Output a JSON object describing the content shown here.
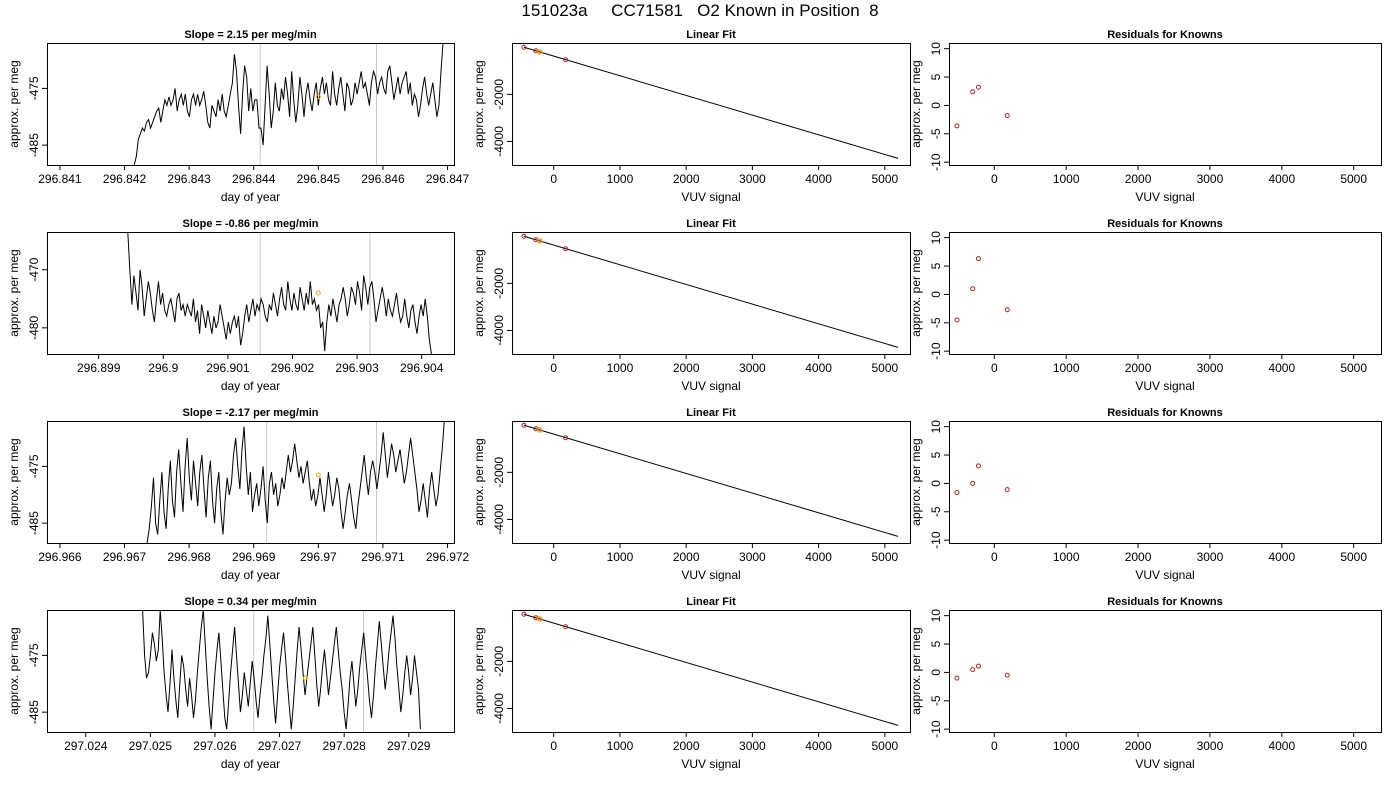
{
  "figure": {
    "title": "151023a     CC71581   O2 Known in Position  8"
  },
  "chart_data": [
    {
      "type": "line",
      "panel": "timeseries",
      "row": 1,
      "title": "Slope =  2.15  per meg/min",
      "xlabel": "day of year",
      "ylabel": "approx. per meg",
      "xlim": [
        296.8408,
        296.8471
      ],
      "ylim": [
        -488.5,
        -467
      ],
      "xticks": [
        296.841,
        296.842,
        296.843,
        296.844,
        296.845,
        296.846,
        296.847
      ],
      "yticks": [
        -475,
        -485
      ],
      "vlines": [
        296.8441,
        296.8459
      ],
      "highlight_point": {
        "x": 296.845,
        "y": -476.5
      },
      "series": [
        {
          "x_start": 296.84215,
          "x_end": 296.84693,
          "values": [
            -488.5,
            -487,
            -484,
            -483,
            -482,
            -482.5,
            -481,
            -480.5,
            -482,
            -481,
            -480,
            -479,
            -478.5,
            -481,
            -479,
            -477,
            -478,
            -476.5,
            -478,
            -477,
            -475,
            -479,
            -477,
            -476,
            -478,
            -476,
            -479,
            -480,
            -477,
            -476,
            -478,
            -476,
            -478,
            -477,
            -475.5,
            -478,
            -481,
            -482,
            -478,
            -479,
            -480,
            -477,
            -479,
            -476,
            -479,
            -480,
            -478,
            -476,
            -474,
            -469,
            -472,
            -478,
            -483,
            -476,
            -471,
            -473,
            -479,
            -475,
            -479,
            -477,
            -477,
            -482,
            -482,
            -485,
            -478,
            -471,
            -476,
            -482,
            -479,
            -474,
            -478,
            -479,
            -475,
            -477,
            -473,
            -476,
            -480,
            -472,
            -477,
            -481,
            -478,
            -473,
            -476,
            -480,
            -476,
            -474,
            -477,
            -479,
            -476,
            -474,
            -478,
            -475,
            -473,
            -476,
            -474,
            -477,
            -478,
            -472,
            -476,
            -478,
            -475,
            -473,
            -476,
            -479,
            -474,
            -475,
            -478,
            -477,
            -474,
            -476,
            -474,
            -472,
            -475,
            -474,
            -476,
            -478,
            -474,
            -472,
            -473,
            -476,
            -474,
            -473,
            -475,
            -476,
            -472,
            -471,
            -474,
            -477,
            -475,
            -473,
            -476,
            -474,
            -473,
            -472,
            -476,
            -474,
            -478,
            -476,
            -477,
            -480,
            -478,
            -475,
            -473,
            -476,
            -478,
            -476,
            -474,
            -477,
            -480,
            -478,
            -472,
            -467
          ]
        }
      ]
    },
    {
      "type": "scatter",
      "panel": "linear_fit",
      "row": 1,
      "title": "Linear Fit",
      "xlabel": "VUV signal",
      "ylabel": "approx. per meg",
      "xlim": [
        -630,
        5380
      ],
      "ylim": [
        -5000,
        180
      ],
      "xticks": [
        0,
        1000,
        2000,
        3000,
        4000,
        5000
      ],
      "yticks": [
        -2000,
        -4000
      ],
      "fit_line": {
        "x": [
          -450,
          5200
        ],
        "y": [
          0,
          -4720
        ]
      },
      "points": {
        "x": [
          -450,
          -270,
          -210,
          180
        ],
        "y": [
          0,
          -150,
          -200,
          -530
        ]
      },
      "highlight_point": {
        "x": -210,
        "y": -200
      }
    },
    {
      "type": "scatter",
      "panel": "residuals",
      "row": 1,
      "title": "Residuals for Knowns",
      "xlabel": "VUV signal",
      "ylabel": "approx. per meg",
      "xlim": [
        -630,
        5380
      ],
      "ylim": [
        -10.5,
        11
      ],
      "xticks": [
        0,
        1000,
        2000,
        3000,
        4000,
        5000
      ],
      "yticks": [
        10,
        5,
        0,
        -5,
        -10
      ],
      "points": {
        "x": [
          -520,
          -300,
          -220,
          180
        ],
        "y": [
          -3.6,
          2.4,
          3.2,
          -1.8
        ]
      }
    },
    {
      "type": "line",
      "panel": "timeseries",
      "row": 2,
      "title": "Slope =  -0.86  per meg/min",
      "xlabel": "day of year",
      "ylabel": "approx. per meg",
      "xlim": [
        296.8982,
        296.9045
      ],
      "ylim": [
        -484.5,
        -463.5
      ],
      "xticks": [
        296.899,
        296.9,
        296.901,
        296.902,
        296.903,
        296.904
      ],
      "yticks": [
        -470,
        -480
      ],
      "vlines": [
        296.9015,
        296.9032
      ],
      "highlight_point": {
        "x": 296.9024,
        "y": -474
      },
      "series": [
        {
          "x_start": 296.89945,
          "x_end": 296.90415,
          "values": [
            -463.5,
            -470,
            -476,
            -471,
            -474,
            -477,
            -470,
            -473,
            -478,
            -475,
            -472,
            -474,
            -477,
            -479,
            -475,
            -472,
            -476,
            -474,
            -477,
            -478,
            -476,
            -475,
            -477,
            -479,
            -475,
            -474,
            -477,
            -476,
            -478,
            -476,
            -477,
            -478,
            -475,
            -479,
            -477,
            -481,
            -476,
            -478,
            -480,
            -477,
            -479,
            -481,
            -478,
            -480,
            -479,
            -476,
            -478,
            -480,
            -482,
            -479,
            -481,
            -479,
            -478,
            -480,
            -478,
            -483,
            -481,
            -478,
            -476,
            -479,
            -477,
            -475,
            -478,
            -476,
            -477,
            -475,
            -476,
            -478,
            -479,
            -476,
            -477,
            -474,
            -476,
            -478,
            -475,
            -473,
            -476,
            -477,
            -472,
            -475,
            -477,
            -474,
            -476,
            -477,
            -473,
            -475,
            -477,
            -474,
            -476,
            -472,
            -476,
            -475,
            -477,
            -476,
            -480,
            -479,
            -484,
            -479,
            -476,
            -478,
            -475,
            -477,
            -479,
            -476,
            -475,
            -473,
            -475,
            -478,
            -476,
            -473,
            -474,
            -476,
            -472,
            -474,
            -477,
            -471,
            -473,
            -476,
            -473,
            -472,
            -475,
            -479,
            -477,
            -475,
            -473,
            -475,
            -478,
            -475,
            -477,
            -478,
            -476,
            -474,
            -477,
            -479,
            -478,
            -475,
            -478,
            -480,
            -477,
            -476,
            -479,
            -481,
            -478,
            -476,
            -478,
            -475,
            -478,
            -482,
            -484.5
          ]
        }
      ]
    },
    {
      "type": "scatter",
      "panel": "linear_fit",
      "row": 2,
      "title": "Linear Fit",
      "xlabel": "VUV signal",
      "ylabel": "approx. per meg",
      "xlim": [
        -630,
        5380
      ],
      "ylim": [
        -5000,
        180
      ],
      "xticks": [
        0,
        1000,
        2000,
        3000,
        4000,
        5000
      ],
      "yticks": [
        -2000,
        -4000
      ],
      "fit_line": {
        "x": [
          -450,
          5200
        ],
        "y": [
          0,
          -4720
        ]
      },
      "points": {
        "x": [
          -450,
          -270,
          -210,
          180
        ],
        "y": [
          0,
          -150,
          -200,
          -530
        ]
      },
      "highlight_point": {
        "x": -210,
        "y": -200
      }
    },
    {
      "type": "scatter",
      "panel": "residuals",
      "row": 2,
      "title": "Residuals for Knowns",
      "xlabel": "VUV signal",
      "ylabel": "approx. per meg",
      "xlim": [
        -630,
        5380
      ],
      "ylim": [
        -10.5,
        11
      ],
      "xticks": [
        0,
        1000,
        2000,
        3000,
        4000,
        5000
      ],
      "yticks": [
        10,
        5,
        0,
        -5,
        -10
      ],
      "points": {
        "x": [
          -520,
          -300,
          -220,
          180
        ],
        "y": [
          -4.5,
          1.0,
          6.3,
          -2.7
        ]
      }
    },
    {
      "type": "line",
      "panel": "timeseries",
      "row": 3,
      "title": "Slope =  -2.17  per meg/min",
      "xlabel": "day of year",
      "ylabel": "approx. per meg",
      "xlim": [
        296.9658,
        296.9721
      ],
      "ylim": [
        -488.5,
        -467
      ],
      "xticks": [
        296.966,
        296.967,
        296.968,
        296.969,
        296.97,
        296.971,
        296.972
      ],
      "yticks": [
        -475,
        -485
      ],
      "vlines": [
        296.9692,
        296.9709
      ],
      "highlight_point": {
        "x": 296.97,
        "y": -476.5
      },
      "series": [
        {
          "x_start": 296.96735,
          "x_end": 296.97195,
          "values": [
            -488.5,
            -486,
            -482,
            -477,
            -485,
            -487,
            -481,
            -476,
            -483,
            -486,
            -479,
            -474,
            -481,
            -484,
            -476,
            -472,
            -478,
            -483,
            -475,
            -470,
            -477,
            -481,
            -474,
            -478,
            -482,
            -476,
            -473,
            -479,
            -484,
            -477,
            -474,
            -481,
            -485,
            -479,
            -476,
            -483,
            -487,
            -481,
            -477,
            -480,
            -478,
            -473,
            -470,
            -475,
            -479,
            -472,
            -468,
            -475,
            -480,
            -476,
            -483,
            -480,
            -478,
            -482,
            -479,
            -475,
            -481,
            -485,
            -478,
            -476,
            -480,
            -478,
            -482,
            -480,
            -477,
            -479,
            -476,
            -473,
            -476,
            -474,
            -471,
            -474,
            -477,
            -475,
            -478,
            -476,
            -474,
            -478,
            -481,
            -479,
            -482,
            -480,
            -477,
            -480,
            -483,
            -480,
            -476,
            -479,
            -482,
            -480,
            -477,
            -479,
            -483,
            -486,
            -483,
            -480,
            -478,
            -481,
            -484,
            -486,
            -482,
            -479,
            -476,
            -473,
            -477,
            -480,
            -476,
            -474,
            -476,
            -479,
            -476,
            -473,
            -469,
            -473,
            -477,
            -474,
            -471,
            -473,
            -476,
            -474,
            -472,
            -475,
            -478,
            -476,
            -473,
            -470,
            -473,
            -476,
            -479,
            -483,
            -481,
            -478,
            -481,
            -484,
            -479,
            -476,
            -479,
            -482,
            -480,
            -476,
            -472,
            -467
          ]
        }
      ]
    },
    {
      "type": "scatter",
      "panel": "linear_fit",
      "row": 3,
      "title": "Linear Fit",
      "xlabel": "VUV signal",
      "ylabel": "approx. per meg",
      "xlim": [
        -630,
        5380
      ],
      "ylim": [
        -5000,
        180
      ],
      "xticks": [
        0,
        1000,
        2000,
        3000,
        4000,
        5000
      ],
      "yticks": [
        -2000,
        -4000
      ],
      "fit_line": {
        "x": [
          -450,
          5200
        ],
        "y": [
          0,
          -4720
        ]
      },
      "points": {
        "x": [
          -450,
          -270,
          -210,
          180
        ],
        "y": [
          0,
          -150,
          -200,
          -530
        ]
      },
      "highlight_point": {
        "x": -210,
        "y": -200
      }
    },
    {
      "type": "scatter",
      "panel": "residuals",
      "row": 3,
      "title": "Residuals for Knowns",
      "xlabel": "VUV signal",
      "ylabel": "approx. per meg",
      "xlim": [
        -630,
        5380
      ],
      "ylim": [
        -10.5,
        11
      ],
      "xticks": [
        0,
        1000,
        2000,
        3000,
        4000,
        5000
      ],
      "yticks": [
        10,
        5,
        0,
        -5,
        -10
      ],
      "points": {
        "x": [
          -520,
          -300,
          -220,
          180
        ],
        "y": [
          -1.6,
          0.0,
          3.1,
          -1.1
        ]
      }
    },
    {
      "type": "line",
      "panel": "timeseries",
      "row": 4,
      "title": "Slope =  0.34  per meg/min",
      "xlabel": "day of year",
      "ylabel": "approx. per meg",
      "xlim": [
        297.0234,
        297.0297
      ],
      "ylim": [
        -488.5,
        -467
      ],
      "xticks": [
        297.024,
        297.025,
        297.026,
        297.027,
        297.028,
        297.029
      ],
      "yticks": [
        -475,
        -485
      ],
      "vlines": [
        297.0266,
        297.0283
      ],
      "highlight_point": {
        "x": 297.0274,
        "y": -479
      },
      "series": [
        {
          "x_start": 297.02488,
          "x_end": 297.02918,
          "values": [
            -467,
            -475,
            -479,
            -478,
            -475,
            -471,
            -473,
            -476,
            -474,
            -467,
            -472,
            -478,
            -482,
            -485,
            -480,
            -474,
            -479,
            -483,
            -486,
            -480,
            -475,
            -477,
            -481,
            -484,
            -479,
            -482,
            -486,
            -483,
            -478,
            -474,
            -470,
            -467,
            -473,
            -479,
            -484,
            -488,
            -483,
            -478,
            -474,
            -471,
            -476,
            -481,
            -486,
            -488,
            -483,
            -478,
            -474,
            -470,
            -475,
            -480,
            -485,
            -482,
            -478,
            -481,
            -484,
            -480,
            -476,
            -479,
            -483,
            -486,
            -482,
            -479,
            -475,
            -472,
            -468,
            -473,
            -478,
            -483,
            -487,
            -482,
            -477,
            -474,
            -471,
            -475,
            -480,
            -484,
            -488,
            -484,
            -479,
            -474,
            -470,
            -474,
            -478,
            -482,
            -479,
            -476,
            -473,
            -470,
            -475,
            -480,
            -484,
            -481,
            -477,
            -474,
            -478,
            -482,
            -479,
            -476,
            -473,
            -470,
            -474,
            -478,
            -481,
            -485,
            -488,
            -484,
            -479,
            -476,
            -480,
            -484,
            -481,
            -477,
            -474,
            -471,
            -475,
            -479,
            -483,
            -486,
            -482,
            -477,
            -473,
            -469,
            -473,
            -477,
            -481,
            -478,
            -474,
            -471,
            -468,
            -472,
            -477,
            -481,
            -485,
            -482,
            -478,
            -475,
            -478,
            -482,
            -479,
            -475,
            -478,
            -481,
            -488
          ]
        }
      ]
    },
    {
      "type": "scatter",
      "panel": "linear_fit",
      "row": 4,
      "title": "Linear Fit",
      "xlabel": "VUV signal",
      "ylabel": "approx. per meg",
      "xlim": [
        -630,
        5380
      ],
      "ylim": [
        -5000,
        180
      ],
      "xticks": [
        0,
        1000,
        2000,
        3000,
        4000,
        5000
      ],
      "yticks": [
        -2000,
        -4000
      ],
      "fit_line": {
        "x": [
          -450,
          5200
        ],
        "y": [
          0,
          -4720
        ]
      },
      "points": {
        "x": [
          -450,
          -270,
          -210,
          180
        ],
        "y": [
          0,
          -150,
          -200,
          -530
        ]
      },
      "highlight_point": {
        "x": -210,
        "y": -200
      }
    },
    {
      "type": "scatter",
      "panel": "residuals",
      "row": 4,
      "title": "Residuals for Knowns",
      "xlabel": "VUV signal",
      "ylabel": "approx. per meg",
      "xlim": [
        -630,
        5380
      ],
      "ylim": [
        -10.5,
        11
      ],
      "xticks": [
        0,
        1000,
        2000,
        3000,
        4000,
        5000
      ],
      "yticks": [
        10,
        5,
        0,
        -5,
        -10
      ],
      "points": {
        "x": [
          -520,
          -300,
          -220,
          180
        ],
        "y": [
          -1.0,
          0.5,
          1.1,
          -0.5
        ]
      }
    }
  ]
}
